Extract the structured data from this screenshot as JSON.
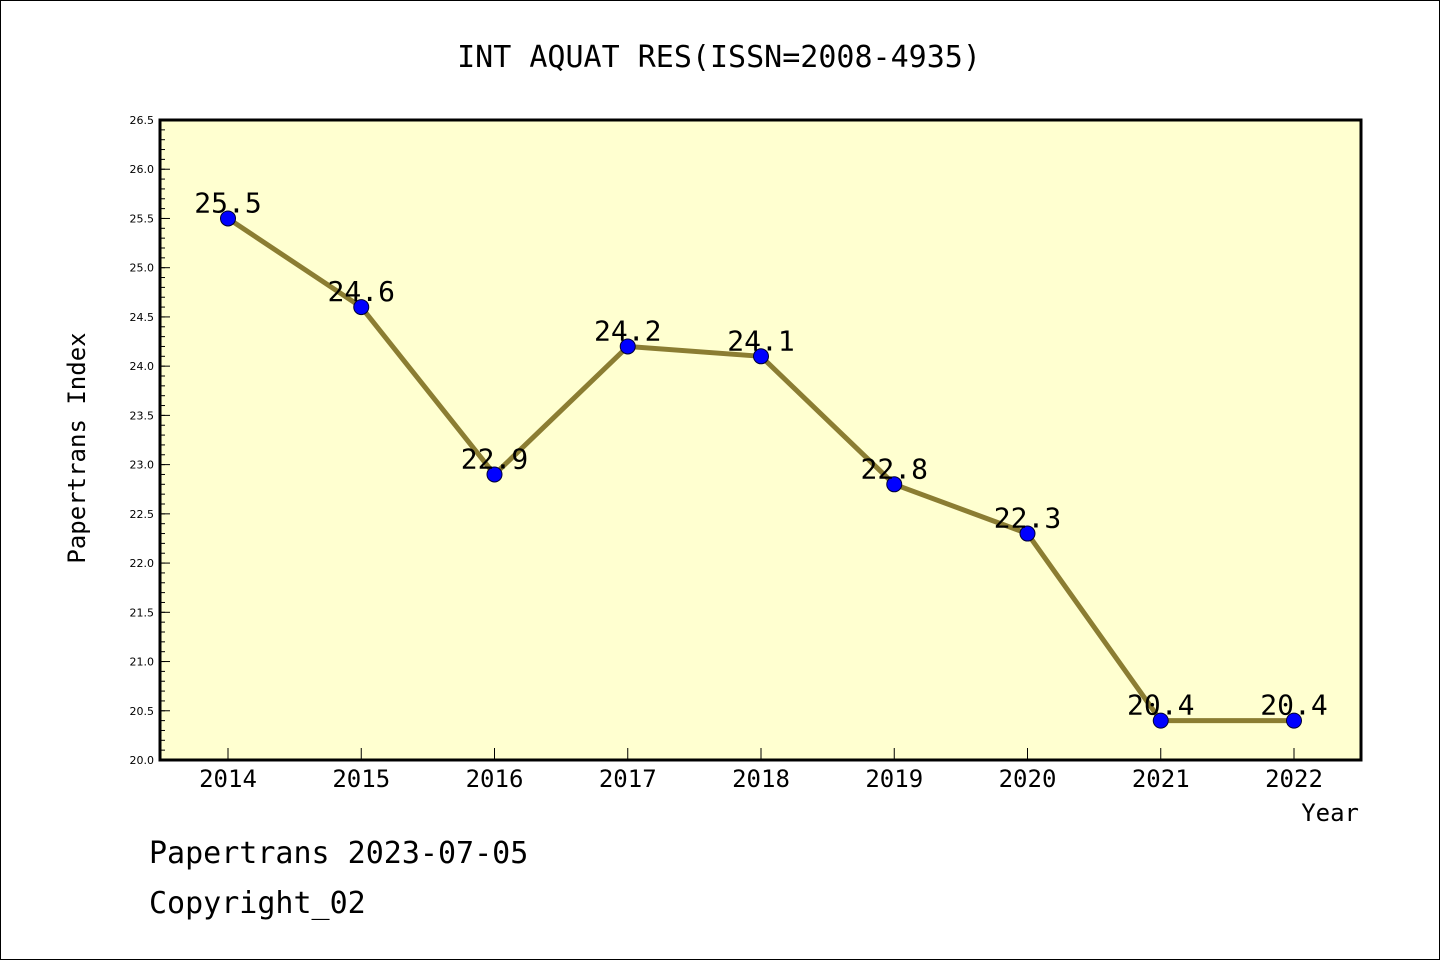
{
  "chart_data": {
    "type": "line",
    "title": "INT AQUAT RES(ISSN=2008-4935)",
    "xlabel": "Year",
    "ylabel": "Papertrans Index",
    "categories": [
      "2014",
      "2015",
      "2016",
      "2017",
      "2018",
      "2019",
      "2020",
      "2021",
      "2022"
    ],
    "series": [
      {
        "values": [
          25.5,
          24.6,
          22.9,
          24.2,
          24.1,
          22.8,
          22.3,
          20.4,
          20.4
        ]
      }
    ],
    "data_labels": [
      "25.5",
      "24.6",
      "22.9",
      "24.2",
      "24.1",
      "22.8",
      "22.3",
      "20.4",
      "20.4"
    ],
    "ylim": [
      20.0,
      26.5
    ],
    "yticks": [
      "20.0",
      "20.5",
      "21.0",
      "21.5",
      "22.0",
      "22.5",
      "23.0",
      "23.5",
      "24.0",
      "24.5",
      "25.0",
      "25.5",
      "26.0",
      "26.5"
    ],
    "grid": false,
    "plot_background": "#ffffd0",
    "line_color": "#8b7d32",
    "marker_color": "#0000ff"
  },
  "footer": {
    "line1": "Papertrans 2023-07-05",
    "line2": "Copyright_02"
  }
}
